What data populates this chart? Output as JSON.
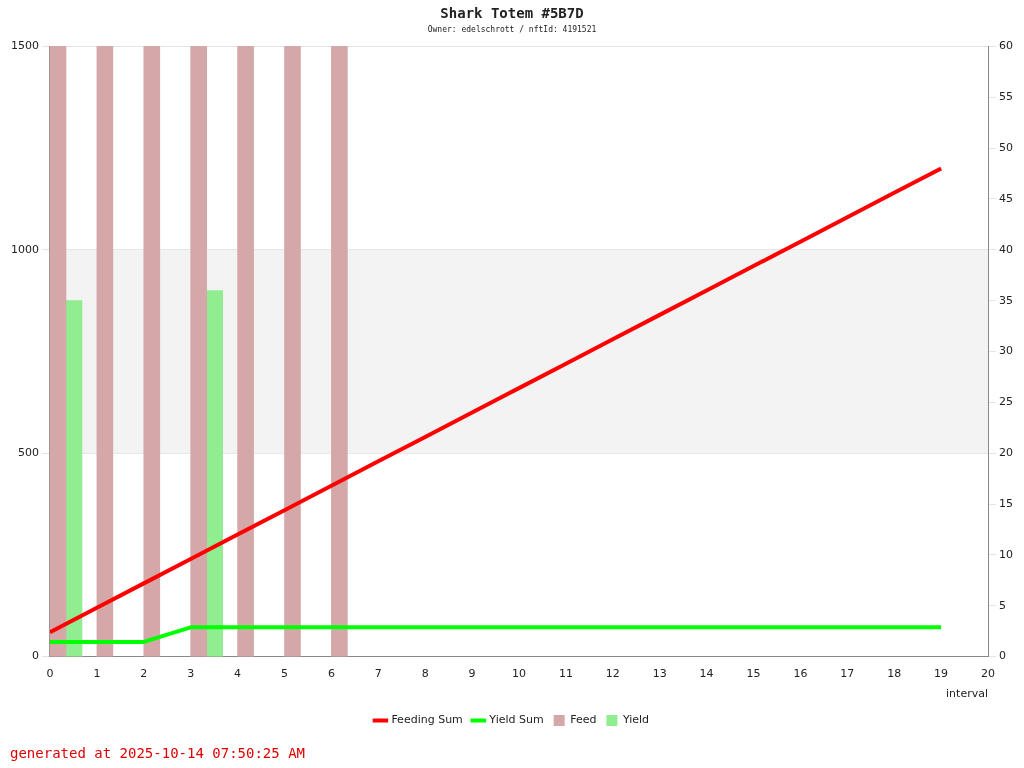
{
  "chart_data": {
    "type": "bar",
    "title": "Shark Totem #5B7D",
    "subtitle": "Owner: edelschrott / nftId: 4191521",
    "xlabel": "interval",
    "xlim": [
      0,
      20
    ],
    "xticks": [
      0,
      1,
      2,
      3,
      4,
      5,
      6,
      7,
      8,
      9,
      10,
      11,
      12,
      13,
      14,
      15,
      16,
      17,
      18,
      19,
      20
    ],
    "ylim": [
      0,
      1500
    ],
    "yticks": [
      0,
      500,
      1000,
      1500
    ],
    "y2lim": [
      0,
      60
    ],
    "y2ticks": [
      0,
      5,
      10,
      15,
      20,
      25,
      30,
      35,
      40,
      45,
      50,
      55,
      60
    ],
    "bands": [
      {
        "axis": "y",
        "from": 500,
        "to": 1000,
        "color": "#f3f3f3"
      }
    ],
    "grid": "y",
    "legend": "bottom",
    "series": [
      {
        "name": "Feeding Sum",
        "type": "line",
        "color": "#ff0000",
        "x": [
          0,
          1,
          2,
          3,
          4,
          5,
          6,
          7,
          8,
          9,
          10,
          11,
          12,
          13,
          14,
          15,
          16,
          17,
          18,
          19
        ],
        "values": [
          60,
          120,
          180,
          240,
          300,
          360,
          420,
          480,
          540,
          600,
          660,
          720,
          780,
          840,
          900,
          960,
          1020,
          1080,
          1140,
          1200
        ]
      },
      {
        "name": "Yield Sum",
        "type": "line",
        "color": "#00ff00",
        "x": [
          0,
          1,
          2,
          3,
          4,
          5,
          6,
          7,
          8,
          9,
          10,
          11,
          12,
          13,
          14,
          15,
          16,
          17,
          18,
          19
        ],
        "values": [
          36,
          36,
          36,
          72,
          72,
          72,
          72,
          72,
          72,
          72,
          72,
          72,
          72,
          72,
          72,
          72,
          72,
          72,
          72,
          72
        ]
      },
      {
        "name": "Feed",
        "axis": "y2",
        "color": "#d4a8a8",
        "x": [
          0,
          1,
          2,
          3,
          4,
          5,
          6
        ],
        "values": [
          60,
          60,
          60,
          60,
          60,
          60,
          60
        ]
      },
      {
        "name": "Yield",
        "axis": "y2",
        "color": "#90ee90",
        "x": [
          0,
          3
        ],
        "values": [
          35,
          36
        ]
      }
    ],
    "annotations": [
      "generated at 2025-10-14 07:50:25 AM"
    ]
  }
}
